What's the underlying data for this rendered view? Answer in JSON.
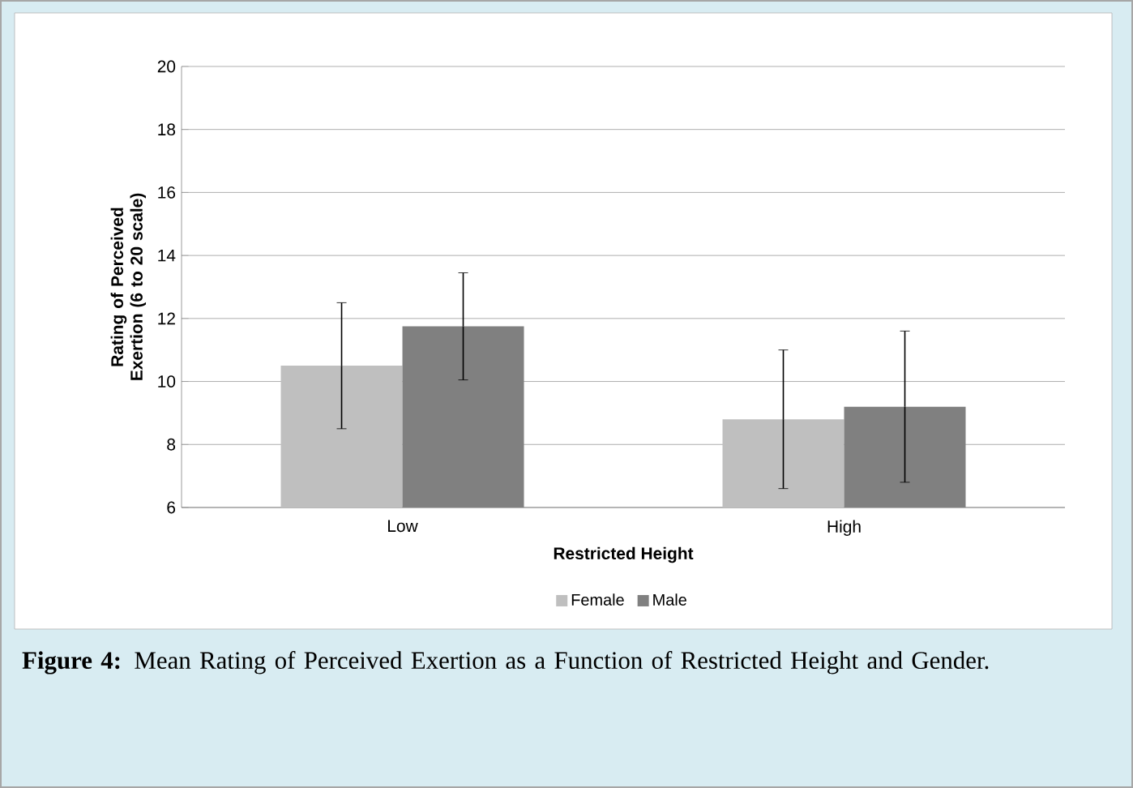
{
  "chart_data": {
    "type": "bar",
    "categories": [
      "Low",
      "High"
    ],
    "series": [
      {
        "name": "Female",
        "color": "#bfbfbf",
        "values": [
          10.5,
          8.8
        ],
        "errors": [
          2.0,
          2.2
        ]
      },
      {
        "name": "Male",
        "color": "#808080",
        "values": [
          11.75,
          9.2
        ],
        "errors": [
          1.7,
          2.4
        ]
      }
    ],
    "xlabel": "Restricted Height",
    "ylabel": "Rating of Perceived Exertion (6 to 20 scale)",
    "ylim": [
      6,
      20
    ],
    "yticks": [
      6,
      8,
      10,
      12,
      14,
      16,
      18,
      20
    ],
    "grid": "y",
    "legend": "bottom",
    "annotations": [
      "**Figure 4:** Mean Rating of Perceived Exertion as a Function of Restricted Height and Gender."
    ]
  }
}
